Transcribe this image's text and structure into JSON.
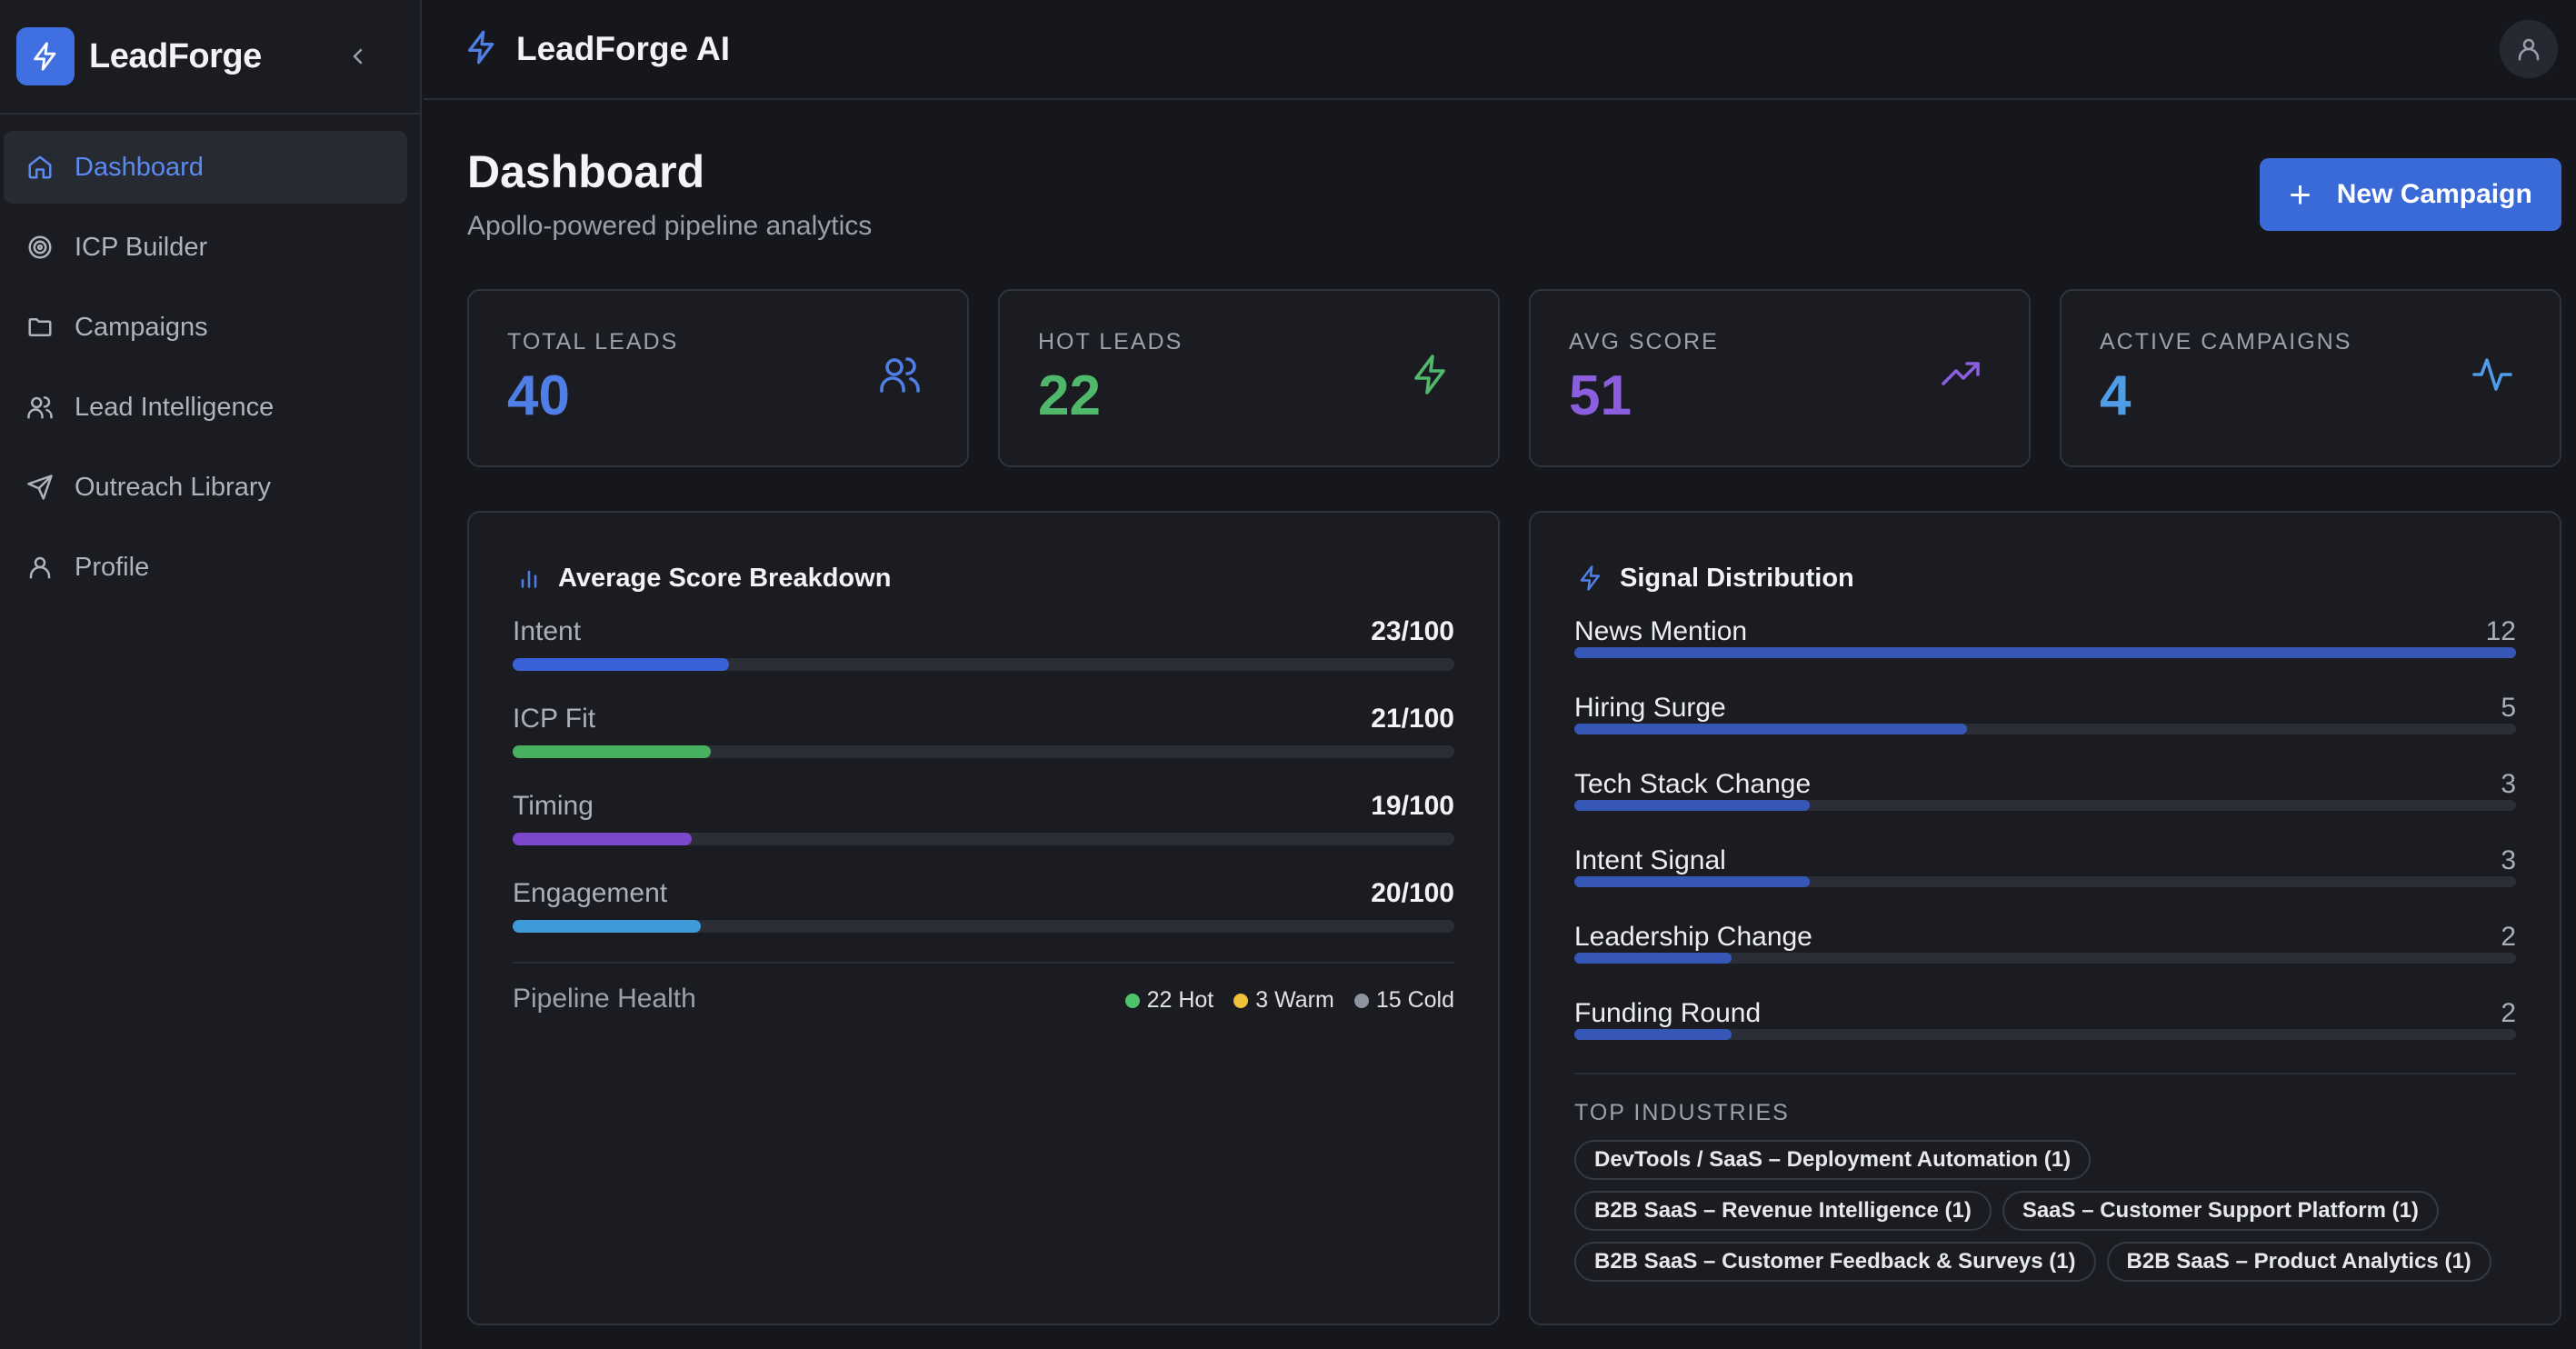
{
  "app": {
    "brand_name": "LeadForge",
    "topbar_title": "LeadForge AI"
  },
  "sidebar": {
    "items": [
      {
        "label": "Dashboard",
        "icon": "home-icon",
        "active": true
      },
      {
        "label": "ICP Builder",
        "icon": "target-icon"
      },
      {
        "label": "Campaigns",
        "icon": "folder-icon"
      },
      {
        "label": "Lead Intelligence",
        "icon": "users-icon"
      },
      {
        "label": "Outreach Library",
        "icon": "send-icon"
      },
      {
        "label": "Profile",
        "icon": "user-icon"
      }
    ]
  },
  "header": {
    "title": "Dashboard",
    "subtitle": "Apollo-powered pipeline analytics",
    "new_campaign_label": "New Campaign"
  },
  "stats": [
    {
      "label": "TOTAL LEADS",
      "value": "40",
      "color": "#4f7fe6",
      "icon": "users-icon"
    },
    {
      "label": "HOT LEADS",
      "value": "22",
      "color": "#4fb86a",
      "icon": "zap-icon"
    },
    {
      "label": "AVG SCORE",
      "value": "51",
      "color": "#8b5ee0",
      "icon": "trending-up-icon"
    },
    {
      "label": "ACTIVE CAMPAIGNS",
      "value": "4",
      "color": "#4f9de6",
      "icon": "activity-icon"
    }
  ],
  "score_breakdown": {
    "title": "Average Score Breakdown",
    "rows": [
      {
        "name": "Intent",
        "value_label": "23/100",
        "value": 23,
        "color": "#3a62d6"
      },
      {
        "name": "ICP Fit",
        "value_label": "21/100",
        "value": 21,
        "color": "#46b05e"
      },
      {
        "name": "Timing",
        "value_label": "19/100",
        "value": 19,
        "color": "#7b48cc"
      },
      {
        "name": "Engagement",
        "value_label": "20/100",
        "value": 20,
        "color": "#3f9ad8"
      }
    ],
    "health_label": "Pipeline Health",
    "health": [
      {
        "label": "22 Hot",
        "color": "#4fc36b"
      },
      {
        "label": "3 Warm",
        "color": "#f0c23a"
      },
      {
        "label": "15 Cold",
        "color": "#8e949f"
      }
    ]
  },
  "signal_distribution": {
    "title": "Signal Distribution",
    "max": 12,
    "rows": [
      {
        "name": "News Mention",
        "count": "12",
        "value": 12
      },
      {
        "name": "Hiring Surge",
        "count": "5",
        "value": 5
      },
      {
        "name": "Tech Stack Change",
        "count": "3",
        "value": 3
      },
      {
        "name": "Intent Signal",
        "count": "3",
        "value": 3
      },
      {
        "name": "Leadership Change",
        "count": "2",
        "value": 2
      },
      {
        "name": "Funding Round",
        "count": "2",
        "value": 2
      }
    ],
    "industries_label": "TOP INDUSTRIES",
    "industries": [
      "DevTools / SaaS – Deployment Automation (1)",
      "B2B SaaS – Revenue Intelligence (1)",
      "SaaS – Customer Support Platform (1)",
      "B2B SaaS – Customer Feedback & Surveys (1)",
      "B2B SaaS – Product Analytics (1)"
    ]
  }
}
